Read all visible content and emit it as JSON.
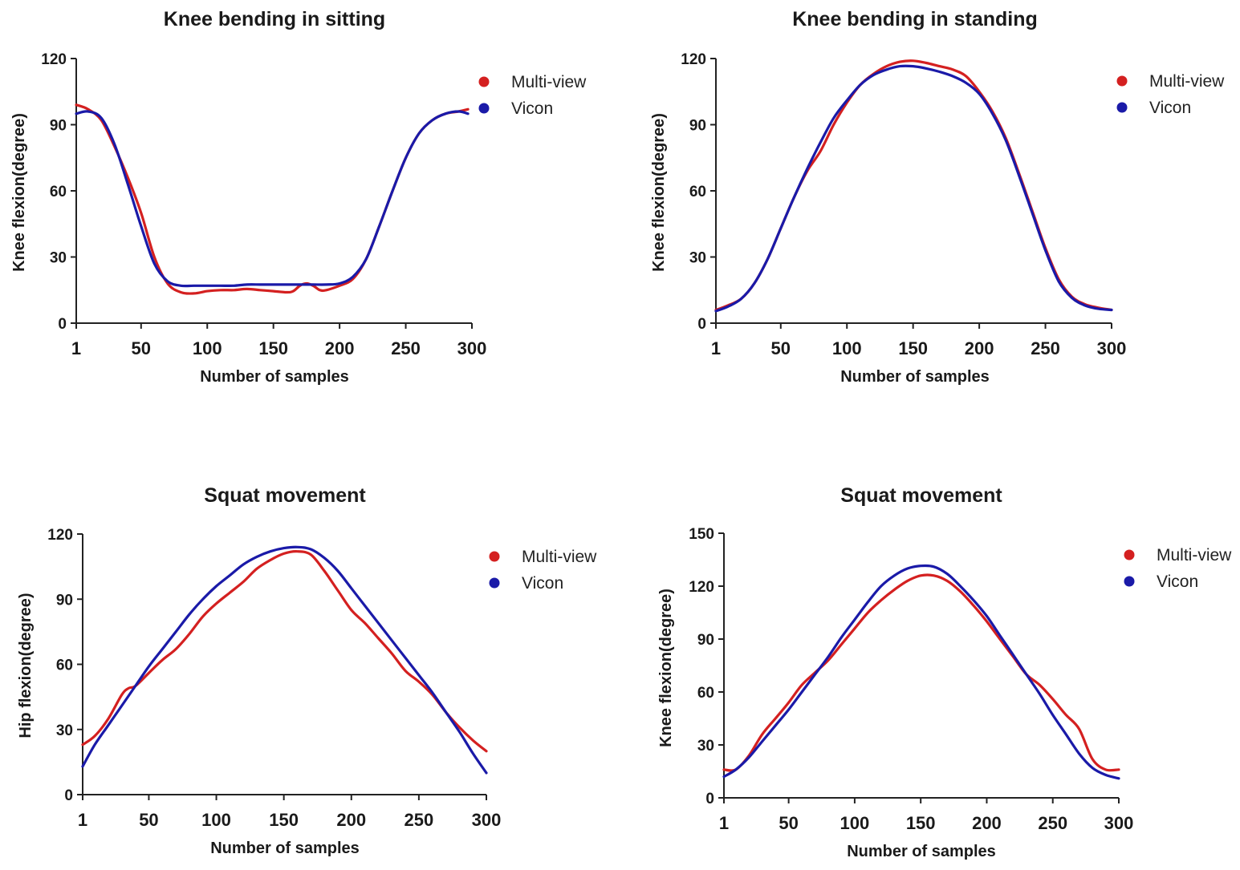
{
  "chart_data": [
    {
      "type": "line",
      "title": "Knee bending in sitting",
      "xlabel": "Number of samples",
      "ylabel": "Knee flexion(degree)",
      "xlim": [
        1,
        300
      ],
      "ylim": [
        0,
        120
      ],
      "xticks": [
        1,
        50,
        100,
        150,
        200,
        250,
        300
      ],
      "yticks": [
        0,
        30,
        60,
        90,
        120
      ],
      "legend_position": "top-right",
      "grid": false,
      "series": [
        {
          "name": "Multi-view",
          "color": "#d42020",
          "x": [
            1,
            10,
            20,
            30,
            40,
            50,
            60,
            70,
            80,
            90,
            100,
            110,
            120,
            130,
            140,
            150,
            160,
            165,
            170,
            175,
            180,
            185,
            190,
            200,
            210,
            220,
            230,
            240,
            250,
            260,
            270,
            280,
            290,
            297
          ],
          "y": [
            99,
            97,
            92,
            80,
            66,
            50,
            30,
            18,
            14,
            13.5,
            14.5,
            15,
            15,
            15.5,
            15,
            14.5,
            14,
            14.5,
            17,
            18,
            17,
            15,
            15,
            17,
            20,
            29,
            44,
            60,
            75,
            86,
            92,
            95,
            96,
            97
          ]
        },
        {
          "name": "Vicon",
          "color": "#1a1aa8",
          "x": [
            1,
            10,
            20,
            30,
            40,
            50,
            60,
            70,
            80,
            90,
            100,
            110,
            120,
            130,
            140,
            150,
            160,
            170,
            180,
            190,
            200,
            210,
            220,
            230,
            240,
            250,
            260,
            270,
            280,
            290,
            297
          ],
          "y": [
            95,
            96,
            93,
            81,
            63,
            44,
            27,
            19,
            17,
            17,
            17,
            17,
            17,
            17.5,
            17.5,
            17.5,
            17.5,
            17.5,
            17.5,
            17.5,
            18,
            21,
            29,
            44,
            60,
            75,
            86,
            92,
            95,
            96,
            95
          ]
        }
      ]
    },
    {
      "type": "line",
      "title": "Knee bending in standing",
      "xlabel": "Number of samples",
      "ylabel": "Knee flexion(degree)",
      "xlim": [
        1,
        300
      ],
      "ylim": [
        0,
        120
      ],
      "xticks": [
        1,
        50,
        100,
        150,
        200,
        250,
        300
      ],
      "yticks": [
        0,
        30,
        60,
        90,
        120
      ],
      "legend_position": "top-right",
      "grid": false,
      "series": [
        {
          "name": "Multi-view",
          "color": "#d42020",
          "x": [
            1,
            10,
            20,
            30,
            40,
            50,
            60,
            70,
            80,
            90,
            100,
            110,
            120,
            130,
            140,
            150,
            160,
            170,
            180,
            190,
            200,
            210,
            220,
            230,
            240,
            250,
            260,
            270,
            280,
            290,
            300
          ],
          "y": [
            6,
            8,
            11,
            18,
            29,
            43,
            57,
            69,
            78,
            90,
            100,
            108,
            113,
            116.5,
            118.5,
            119,
            118,
            116.5,
            115,
            112,
            105,
            96,
            84,
            68,
            51,
            34,
            20,
            12,
            8.5,
            7,
            6
          ]
        },
        {
          "name": "Vicon",
          "color": "#1a1aa8",
          "x": [
            1,
            10,
            20,
            30,
            40,
            50,
            60,
            70,
            80,
            90,
            100,
            110,
            120,
            130,
            140,
            150,
            160,
            170,
            180,
            190,
            200,
            210,
            220,
            230,
            240,
            250,
            260,
            270,
            280,
            290,
            300
          ],
          "y": [
            5.5,
            7.5,
            11,
            18,
            29,
            43,
            57,
            70,
            82,
            93,
            101,
            108,
            112.5,
            115,
            116.5,
            116.5,
            115.5,
            114,
            112,
            109,
            104,
            95,
            83,
            67,
            50,
            33,
            19,
            11.5,
            8,
            6.5,
            6
          ]
        }
      ]
    },
    {
      "type": "line",
      "title": "Squat movement",
      "xlabel": "Number of samples",
      "ylabel": "Hip flexion(degree)",
      "xlim": [
        1,
        300
      ],
      "ylim": [
        0,
        120
      ],
      "xticks": [
        1,
        50,
        100,
        150,
        200,
        250,
        300
      ],
      "yticks": [
        0,
        30,
        60,
        90,
        120
      ],
      "legend_position": "top-right",
      "grid": false,
      "series": [
        {
          "name": "Multi-view",
          "color": "#d42020",
          "x": [
            1,
            10,
            20,
            30,
            35,
            40,
            50,
            60,
            70,
            80,
            90,
            100,
            110,
            120,
            130,
            140,
            150,
            160,
            170,
            180,
            190,
            200,
            210,
            220,
            230,
            240,
            250,
            260,
            270,
            280,
            290,
            300
          ],
          "y": [
            23,
            27,
            35,
            46,
            49,
            50,
            56,
            62,
            67,
            74,
            82,
            88,
            93,
            98,
            104,
            108,
            111,
            112,
            110.5,
            103,
            94,
            85,
            79,
            72,
            65,
            57,
            52,
            46,
            38,
            31,
            25,
            20
          ]
        },
        {
          "name": "Vicon",
          "color": "#1a1aa8",
          "x": [
            1,
            10,
            20,
            30,
            40,
            50,
            60,
            70,
            80,
            90,
            100,
            110,
            120,
            130,
            140,
            150,
            160,
            170,
            180,
            190,
            200,
            210,
            220,
            230,
            240,
            250,
            260,
            270,
            280,
            290,
            300
          ],
          "y": [
            13,
            23,
            32,
            41,
            50,
            59,
            67,
            75,
            83,
            90,
            96,
            101,
            106,
            109.5,
            112,
            113.5,
            114,
            113,
            109,
            103,
            95,
            87,
            79,
            71,
            63,
            55,
            47,
            38,
            29,
            19,
            10
          ]
        }
      ]
    },
    {
      "type": "line",
      "title": "Squat movement",
      "xlabel": "Number of samples",
      "ylabel": "Knee flexion(degree)",
      "xlim": [
        1,
        300
      ],
      "ylim": [
        0,
        150
      ],
      "xticks": [
        1,
        50,
        100,
        150,
        200,
        250,
        300
      ],
      "yticks": [
        0,
        30,
        60,
        90,
        120,
        150
      ],
      "legend_position": "top-right",
      "grid": false,
      "series": [
        {
          "name": "Multi-view",
          "color": "#d42020",
          "x": [
            1,
            10,
            20,
            30,
            40,
            50,
            60,
            70,
            80,
            90,
            100,
            110,
            120,
            130,
            140,
            150,
            160,
            170,
            180,
            190,
            200,
            210,
            220,
            230,
            240,
            250,
            260,
            270,
            280,
            290,
            300
          ],
          "y": [
            16,
            16,
            24,
            36,
            45,
            54,
            64,
            71,
            78,
            87,
            96,
            105,
            112,
            118,
            123,
            126,
            126,
            123,
            117,
            109,
            100,
            90,
            80,
            70,
            64,
            56,
            47,
            39,
            22,
            16,
            16
          ]
        },
        {
          "name": "Vicon",
          "color": "#1a1aa8",
          "x": [
            1,
            10,
            20,
            30,
            40,
            50,
            60,
            70,
            80,
            90,
            100,
            110,
            120,
            130,
            140,
            150,
            160,
            170,
            180,
            190,
            200,
            210,
            220,
            230,
            240,
            250,
            260,
            270,
            280,
            290,
            300
          ],
          "y": [
            12,
            16,
            23,
            32,
            41,
            50,
            60,
            70,
            80,
            91,
            101,
            111,
            120,
            126,
            130,
            131.5,
            131,
            127,
            120,
            112,
            103,
            92,
            81,
            70,
            59,
            47,
            36,
            25,
            17,
            13,
            11
          ]
        }
      ]
    }
  ]
}
